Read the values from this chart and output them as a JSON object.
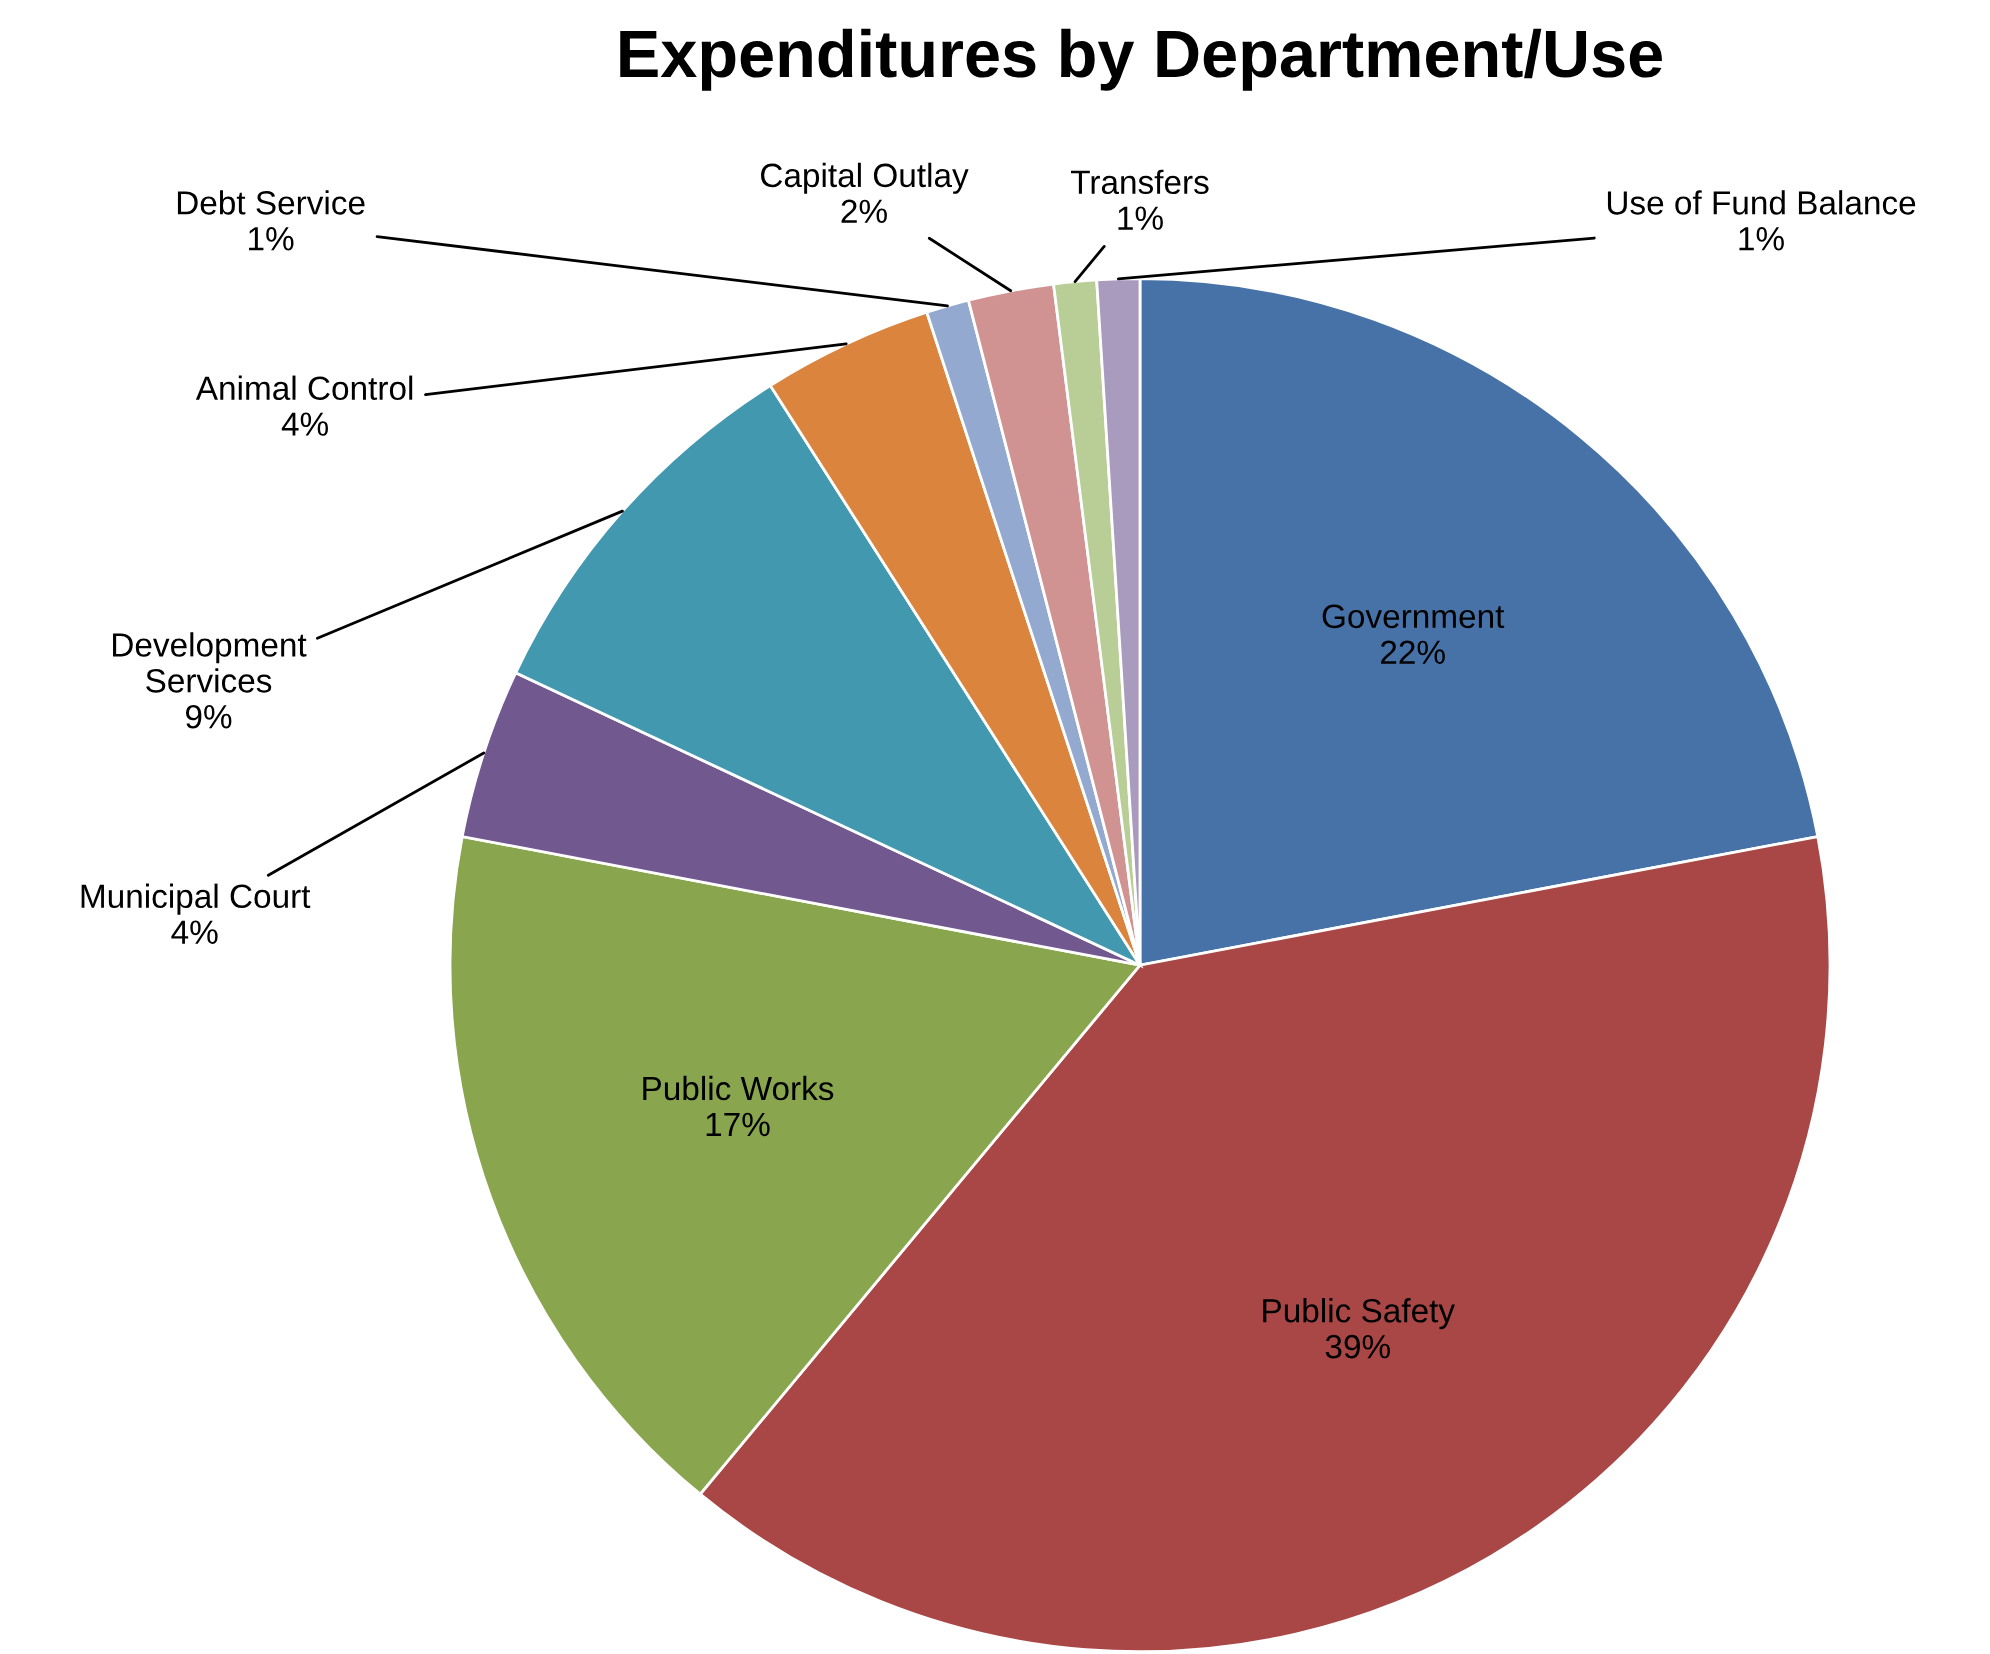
{
  "chart_data": {
    "type": "pie",
    "title": "Expenditures by Department/Use",
    "categories": [
      "Government",
      "Public Safety",
      "Public Works",
      "Municipal Court",
      "Development\nServices",
      "Animal Control",
      "Debt Service",
      "Capital Outlay",
      "Transfers",
      "Use of Fund Balance"
    ],
    "values": [
      22,
      39,
      17,
      4,
      9,
      4,
      1,
      2,
      1,
      1
    ],
    "value_labels": [
      "22%",
      "39%",
      "17%",
      "4%",
      "9%",
      "4%",
      "1%",
      "2%",
      "1%",
      "1%"
    ],
    "colors": [
      "#4672a8",
      "#a84745",
      "#89a54e",
      "#71588f",
      "#4298af",
      "#db843d",
      "#93a9cf",
      "#d19392",
      "#b9cd96",
      "#a99bbd"
    ],
    "legend": false
  }
}
